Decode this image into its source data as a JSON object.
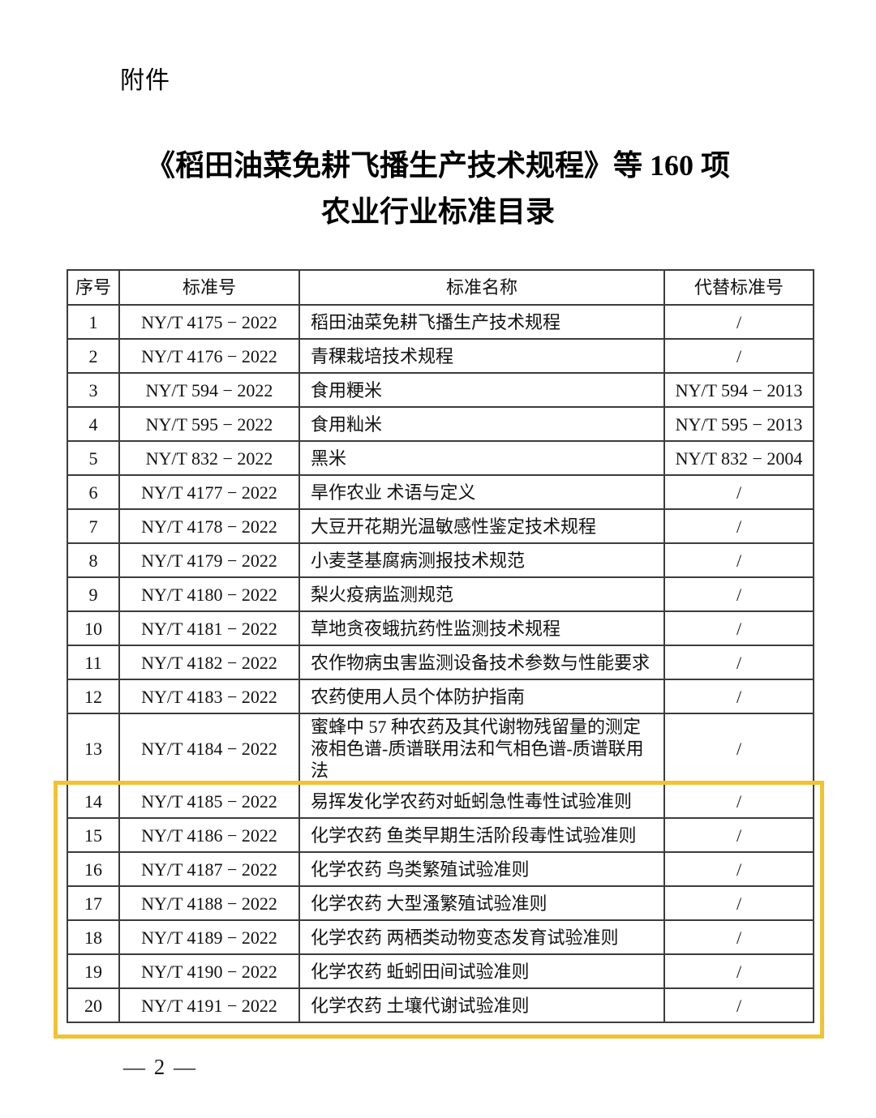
{
  "page": {
    "attachment_label": "附件",
    "title_line1": "《稻田油菜免耕飞播生产技术规程》等 160 项",
    "title_line2": "农业行业标准目录",
    "page_number": "— 2 —"
  },
  "table": {
    "headers": [
      "序号",
      "标准号",
      "标准名称",
      "代替标准号"
    ],
    "rows": [
      {
        "no": "1",
        "std": "NY/T 4175 − 2022",
        "name": "稻田油菜免耕飞播生产技术规程",
        "replaces": "/"
      },
      {
        "no": "2",
        "std": "NY/T 4176 − 2022",
        "name": "青稞栽培技术规程",
        "replaces": "/"
      },
      {
        "no": "3",
        "std": "NY/T 594 − 2022",
        "name": "食用粳米",
        "replaces": "NY/T 594 − 2013"
      },
      {
        "no": "4",
        "std": "NY/T 595 − 2022",
        "name": "食用籼米",
        "replaces": "NY/T 595 − 2013"
      },
      {
        "no": "5",
        "std": "NY/T 832 − 2022",
        "name": "黑米",
        "replaces": "NY/T 832 − 2004"
      },
      {
        "no": "6",
        "std": "NY/T 4177 − 2022",
        "name": "旱作农业 术语与定义",
        "replaces": "/"
      },
      {
        "no": "7",
        "std": "NY/T 4178 − 2022",
        "name": "大豆开花期光温敏感性鉴定技术规程",
        "replaces": "/"
      },
      {
        "no": "8",
        "std": "NY/T 4179 − 2022",
        "name": "小麦茎基腐病测报技术规范",
        "replaces": "/"
      },
      {
        "no": "9",
        "std": "NY/T 4180 − 2022",
        "name": "梨火疫病监测规范",
        "replaces": "/"
      },
      {
        "no": "10",
        "std": "NY/T 4181 − 2022",
        "name": "草地贪夜蛾抗药性监测技术规程",
        "replaces": "/"
      },
      {
        "no": "11",
        "std": "NY/T 4182 − 2022",
        "name": "农作物病虫害监测设备技术参数与性能要求",
        "replaces": "/"
      },
      {
        "no": "12",
        "std": "NY/T 4183 − 2022",
        "name": "农药使用人员个体防护指南",
        "replaces": "/"
      },
      {
        "no": "13",
        "std": "NY/T 4184 − 2022",
        "name": "蜜蜂中 57 种农药及其代谢物残留量的测定 液相色谱-质谱联用法和气相色谱-质谱联用法",
        "replaces": "/"
      },
      {
        "no": "14",
        "std": "NY/T 4185 − 2022",
        "name": "易挥发化学农药对蚯蚓急性毒性试验准则",
        "replaces": "/"
      },
      {
        "no": "15",
        "std": "NY/T 4186 − 2022",
        "name": "化学农药 鱼类早期生活阶段毒性试验准则",
        "replaces": "/"
      },
      {
        "no": "16",
        "std": "NY/T 4187 − 2022",
        "name": "化学农药 鸟类繁殖试验准则",
        "replaces": "/"
      },
      {
        "no": "17",
        "std": "NY/T 4188 − 2022",
        "name": "化学农药 大型溞繁殖试验准则",
        "replaces": "/"
      },
      {
        "no": "18",
        "std": "NY/T 4189 − 2022",
        "name": "化学农药 两栖类动物变态发育试验准则",
        "replaces": "/"
      },
      {
        "no": "19",
        "std": "NY/T 4190 − 2022",
        "name": "化学农药 蚯蚓田间试验准则",
        "replaces": "/"
      },
      {
        "no": "20",
        "std": "NY/T 4191 − 2022",
        "name": "化学农药 土壤代谢试验准则",
        "replaces": "/"
      }
    ]
  },
  "highlight": {
    "color": "#F2C230",
    "first_row": "14",
    "last_row": "20"
  }
}
